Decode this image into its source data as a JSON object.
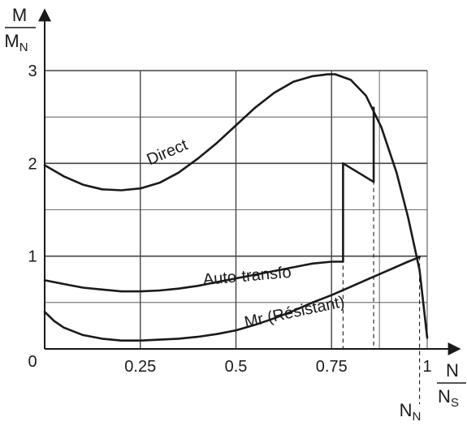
{
  "chart_data": {
    "type": "line",
    "x_ticks": [
      {
        "value": 0.25,
        "label": "0.25"
      },
      {
        "value": 0.5,
        "label": "0.5"
      },
      {
        "value": 0.75,
        "label": "0.75"
      },
      {
        "value": 1,
        "label": "1"
      }
    ],
    "y_ticks": [
      {
        "value": 1,
        "label": "1"
      },
      {
        "value": 2,
        "label": "2"
      },
      {
        "value": 3,
        "label": "3"
      }
    ],
    "origin_label": "0",
    "xlim": [
      0,
      1
    ],
    "ylim": [
      0,
      3
    ],
    "grid": true,
    "y_label": {
      "numerator": "M",
      "denominator": "M",
      "denominator_sub": "N"
    },
    "x_label": {
      "numerator": "N",
      "denominator": "N",
      "denominator_sub": "S"
    },
    "nominal_speed_label": {
      "main": "N",
      "sub": "N",
      "value": 0.98
    },
    "series": [
      {
        "name": "Direct",
        "x": [
          0,
          0.05,
          0.1,
          0.15,
          0.2,
          0.25,
          0.3,
          0.35,
          0.4,
          0.45,
          0.5,
          0.55,
          0.6,
          0.65,
          0.7,
          0.74,
          0.76,
          0.8,
          0.84,
          0.88,
          0.92,
          0.95,
          0.98,
          1.0
        ],
        "y": [
          1.98,
          1.86,
          1.77,
          1.72,
          1.71,
          1.73,
          1.79,
          1.9,
          2.05,
          2.22,
          2.41,
          2.6,
          2.76,
          2.88,
          2.94,
          2.96,
          2.96,
          2.9,
          2.73,
          2.39,
          1.9,
          1.42,
          0.85,
          0.12
        ]
      },
      {
        "name": "Auto-transfo",
        "x": [
          0,
          0.05,
          0.1,
          0.15,
          0.2,
          0.25,
          0.3,
          0.35,
          0.4,
          0.45,
          0.5,
          0.55,
          0.6,
          0.65,
          0.7,
          0.75,
          0.78,
          0.78,
          0.86,
          0.86
        ],
        "y": [
          0.74,
          0.7,
          0.66,
          0.64,
          0.62,
          0.62,
          0.63,
          0.65,
          0.68,
          0.72,
          0.76,
          0.8,
          0.84,
          0.88,
          0.92,
          0.94,
          0.94,
          2.0,
          1.8,
          2.6
        ]
      },
      {
        "name": "Mr (Résistant)",
        "x": [
          0,
          0.025,
          0.05,
          0.1,
          0.15,
          0.2,
          0.25,
          0.3,
          0.35,
          0.4,
          0.45,
          0.5,
          0.55,
          0.6,
          0.65,
          0.7,
          0.75,
          0.8,
          0.85,
          0.9,
          0.95,
          0.98
        ],
        "y": [
          0.4,
          0.3,
          0.23,
          0.15,
          0.11,
          0.09,
          0.09,
          0.1,
          0.11,
          0.13,
          0.16,
          0.2,
          0.26,
          0.33,
          0.41,
          0.5,
          0.58,
          0.67,
          0.76,
          0.85,
          0.94,
          0.99
        ]
      }
    ],
    "dashed_markers": [
      {
        "x": 0.78,
        "y": 2.0
      },
      {
        "x": 0.86,
        "y": 2.6
      },
      {
        "x": 0.98,
        "y": 1.0
      }
    ],
    "curve_labels": [
      {
        "series": "Direct",
        "text": "Direct",
        "x": 0.2745,
        "y": 1.98,
        "angle": -23
      },
      {
        "series": "Auto-transfo",
        "text": "Auto-transfo",
        "x": 0.4151,
        "y": 0.69,
        "angle": -5
      },
      {
        "series": "Mr (Résistant)",
        "text": "Mr (Résistant)",
        "x": 0.5255,
        "y": 0.23,
        "angle": -12
      }
    ]
  }
}
